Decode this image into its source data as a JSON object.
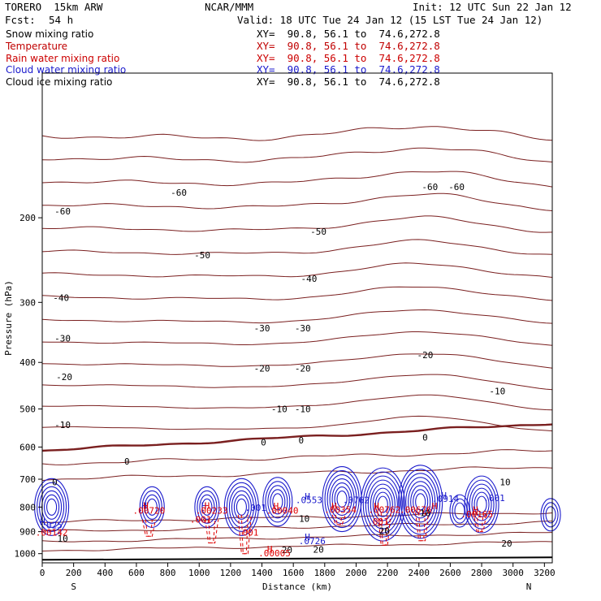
{
  "header": {
    "model": "TORERO  15km ARW",
    "center": "NCAR/MMM",
    "init": "Init: 12 UTC Sun 22 Jan 12",
    "fcst_label": "Fcst:",
    "fcst_value": "54 h",
    "valid": "Valid: 18 UTC Tue 24 Jan 12 (15 LST Tue 24 Jan 12)"
  },
  "fields": [
    {
      "name": "Snow mixing ratio",
      "color": "#000000",
      "xy": "XY=  90.8, 56.1 to  74.6,272.8",
      "xy_color": "#000000"
    },
    {
      "name": "Temperature",
      "color": "#c00000",
      "xy": "XY=  90.8, 56.1 to  74.6,272.8",
      "xy_color": "#c00000"
    },
    {
      "name": "Rain water mixing ratio",
      "color": "#cc0000",
      "xy": "XY=  90.8, 56.1 to  74.6,272.8",
      "xy_color": "#cc0000"
    },
    {
      "name": "Cloud water mixing ratio",
      "color": "#1a1acc",
      "xy": "XY=  90.8, 56.1 to  74.6,272.8",
      "xy_color": "#1a1acc"
    },
    {
      "name": "Cloud ice mixing ratio",
      "color": "#000000",
      "xy": "XY=  90.8, 56.1 to  74.6,272.8",
      "xy_color": "#000000"
    }
  ],
  "chart_data": {
    "type": "contour-cross-section",
    "xlabel": "Distance (km)",
    "ylabel": "Pressure (hPa)",
    "x_ticks": [
      0,
      200,
      400,
      600,
      800,
      1000,
      1200,
      1400,
      1600,
      1800,
      2000,
      2200,
      2400,
      2600,
      2800,
      3000,
      3200
    ],
    "y_ticks": [
      200,
      300,
      400,
      500,
      600,
      700,
      800,
      900,
      1000
    ],
    "xlim": [
      0,
      3250
    ],
    "ylim": [
      1045,
      100
    ],
    "end_labels": {
      "left": "S",
      "right": "N"
    },
    "colors": {
      "temperature": "#7a1f1f",
      "cloud": "#1a1acc",
      "rain": "#e00000",
      "ground": "#000000"
    },
    "temperature_labels": [
      {
        "x": 130,
        "p": 197,
        "text": "-60"
      },
      {
        "x": 870,
        "p": 180,
        "text": "-60"
      },
      {
        "x": 2470,
        "p": 175,
        "text": "-60"
      },
      {
        "x": 2640,
        "p": 175,
        "text": "-60"
      },
      {
        "x": 1020,
        "p": 243,
        "text": "-50"
      },
      {
        "x": 1760,
        "p": 217,
        "text": "-50"
      },
      {
        "x": 120,
        "p": 298,
        "text": "-40"
      },
      {
        "x": 1700,
        "p": 272,
        "text": "-40"
      },
      {
        "x": 130,
        "p": 362,
        "text": "-30"
      },
      {
        "x": 1400,
        "p": 345,
        "text": "-30"
      },
      {
        "x": 1660,
        "p": 345,
        "text": "-30"
      },
      {
        "x": 2440,
        "p": 392,
        "text": "-20"
      },
      {
        "x": 140,
        "p": 435,
        "text": "-20"
      },
      {
        "x": 1400,
        "p": 418,
        "text": "-20"
      },
      {
        "x": 1660,
        "p": 418,
        "text": "-20"
      },
      {
        "x": 2900,
        "p": 466,
        "text": "-10"
      },
      {
        "x": 130,
        "p": 548,
        "text": "-10"
      },
      {
        "x": 1510,
        "p": 508,
        "text": "-10"
      },
      {
        "x": 1660,
        "p": 508,
        "text": "-10"
      },
      {
        "x": 2440,
        "p": 582,
        "text": "0"
      },
      {
        "x": 1410,
        "p": 596,
        "text": "0"
      },
      {
        "x": 1650,
        "p": 590,
        "text": "0"
      },
      {
        "x": 540,
        "p": 652,
        "text": "0"
      },
      {
        "x": 80,
        "p": 720,
        "text": "0"
      },
      {
        "x": 2950,
        "p": 720,
        "text": "10"
      },
      {
        "x": 2440,
        "p": 836,
        "text": "10"
      },
      {
        "x": 1670,
        "p": 859,
        "text": "10"
      },
      {
        "x": 2180,
        "p": 910,
        "text": "20"
      },
      {
        "x": 130,
        "p": 945,
        "text": "10"
      },
      {
        "x": 2960,
        "p": 967,
        "text": "20"
      },
      {
        "x": 1560,
        "p": 997,
        "text": "20"
      },
      {
        "x": 1760,
        "p": 995,
        "text": "20"
      }
    ],
    "cloud_labels": [
      {
        "x": 650,
        "p": 806,
        "text": "H"
      },
      {
        "x": 1030,
        "p": 806,
        "text": "H"
      },
      {
        "x": 1360,
        "p": 815,
        "text": ".001"
      },
      {
        "x": 1700,
        "p": 785,
        "text": ".0553"
      },
      {
        "x": 1690,
        "p": 772,
        "text": "H"
      },
      {
        "x": 2000,
        "p": 785,
        "text": ".0762"
      },
      {
        "x": 2570,
        "p": 780,
        "text": ".0914"
      },
      {
        "x": 2560,
        "p": 768,
        "text": "H"
      },
      {
        "x": 2880,
        "p": 777,
        "text": ".001"
      },
      {
        "x": 60,
        "p": 886,
        "text": ".025"
      },
      {
        "x": 2,
        "p": 872,
        "text": "H"
      },
      {
        "x": 1690,
        "p": 938,
        "text": "H"
      },
      {
        "x": 1720,
        "p": 956,
        "text": ".0726"
      }
    ],
    "rain_labels": [
      {
        "x": 680,
        "p": 825,
        "text": ".00720"
      },
      {
        "x": 1080,
        "p": 825,
        "text": ".00233"
      },
      {
        "x": 1530,
        "p": 825,
        "text": ".00040"
      },
      {
        "x": 1490,
        "p": 808,
        "text": "H"
      },
      {
        "x": 1900,
        "p": 823,
        "text": ".00354"
      },
      {
        "x": 1860,
        "p": 808,
        "text": "H"
      },
      {
        "x": 2180,
        "p": 823,
        "text": ".00762"
      },
      {
        "x": 2130,
        "p": 808,
        "text": "H"
      },
      {
        "x": 2380,
        "p": 823,
        "text": ".00676"
      },
      {
        "x": 2500,
        "p": 808,
        "text": "H"
      },
      {
        "x": 2770,
        "p": 840,
        "text": ".00165"
      },
      {
        "x": 2760,
        "p": 822,
        "text": "H"
      },
      {
        "x": 1010,
        "p": 862,
        "text": ".001"
      },
      {
        "x": 2140,
        "p": 870,
        "text": ".001"
      },
      {
        "x": 1310,
        "p": 917,
        "text": ".001"
      },
      {
        "x": 60,
        "p": 918,
        "text": ".00142"
      },
      {
        "x": 1480,
        "p": 1012,
        "text": ".00005"
      },
      {
        "x": 1450,
        "p": 994,
        "text": "H"
      },
      {
        "x": 660,
        "p": 806,
        "text": "H"
      },
      {
        "x": 1050,
        "p": 806,
        "text": "H"
      }
    ]
  }
}
